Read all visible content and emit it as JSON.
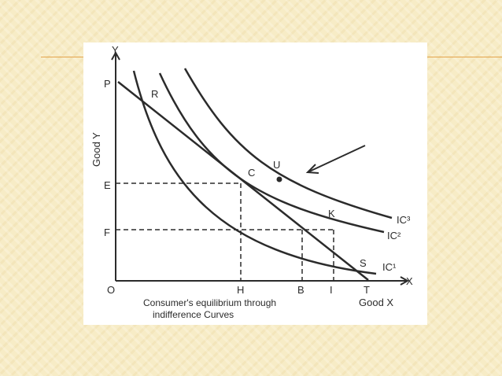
{
  "diagram": {
    "axis_y_label": "Y",
    "axis_x_label": "X",
    "good_y_label": "Good Y",
    "good_x_label": "Good X",
    "origin_label": "O",
    "point_labels": {
      "P": "P",
      "R": "R",
      "C": "C",
      "U": "U",
      "K": "K",
      "S": "S",
      "T": "T",
      "E": "E",
      "F": "F",
      "H": "H",
      "B": "B",
      "I": "I"
    },
    "curve_labels": {
      "ic1": "IC¹",
      "ic2": "IC²",
      "ic3": "IC³"
    },
    "caption_line1": "Consumer's equilibrium through",
    "caption_line2": "indifference Curves"
  },
  "colors": {
    "background": "#f7ecc6",
    "accent_rule": "#e3a34a",
    "ink": "#2b2b2b"
  }
}
